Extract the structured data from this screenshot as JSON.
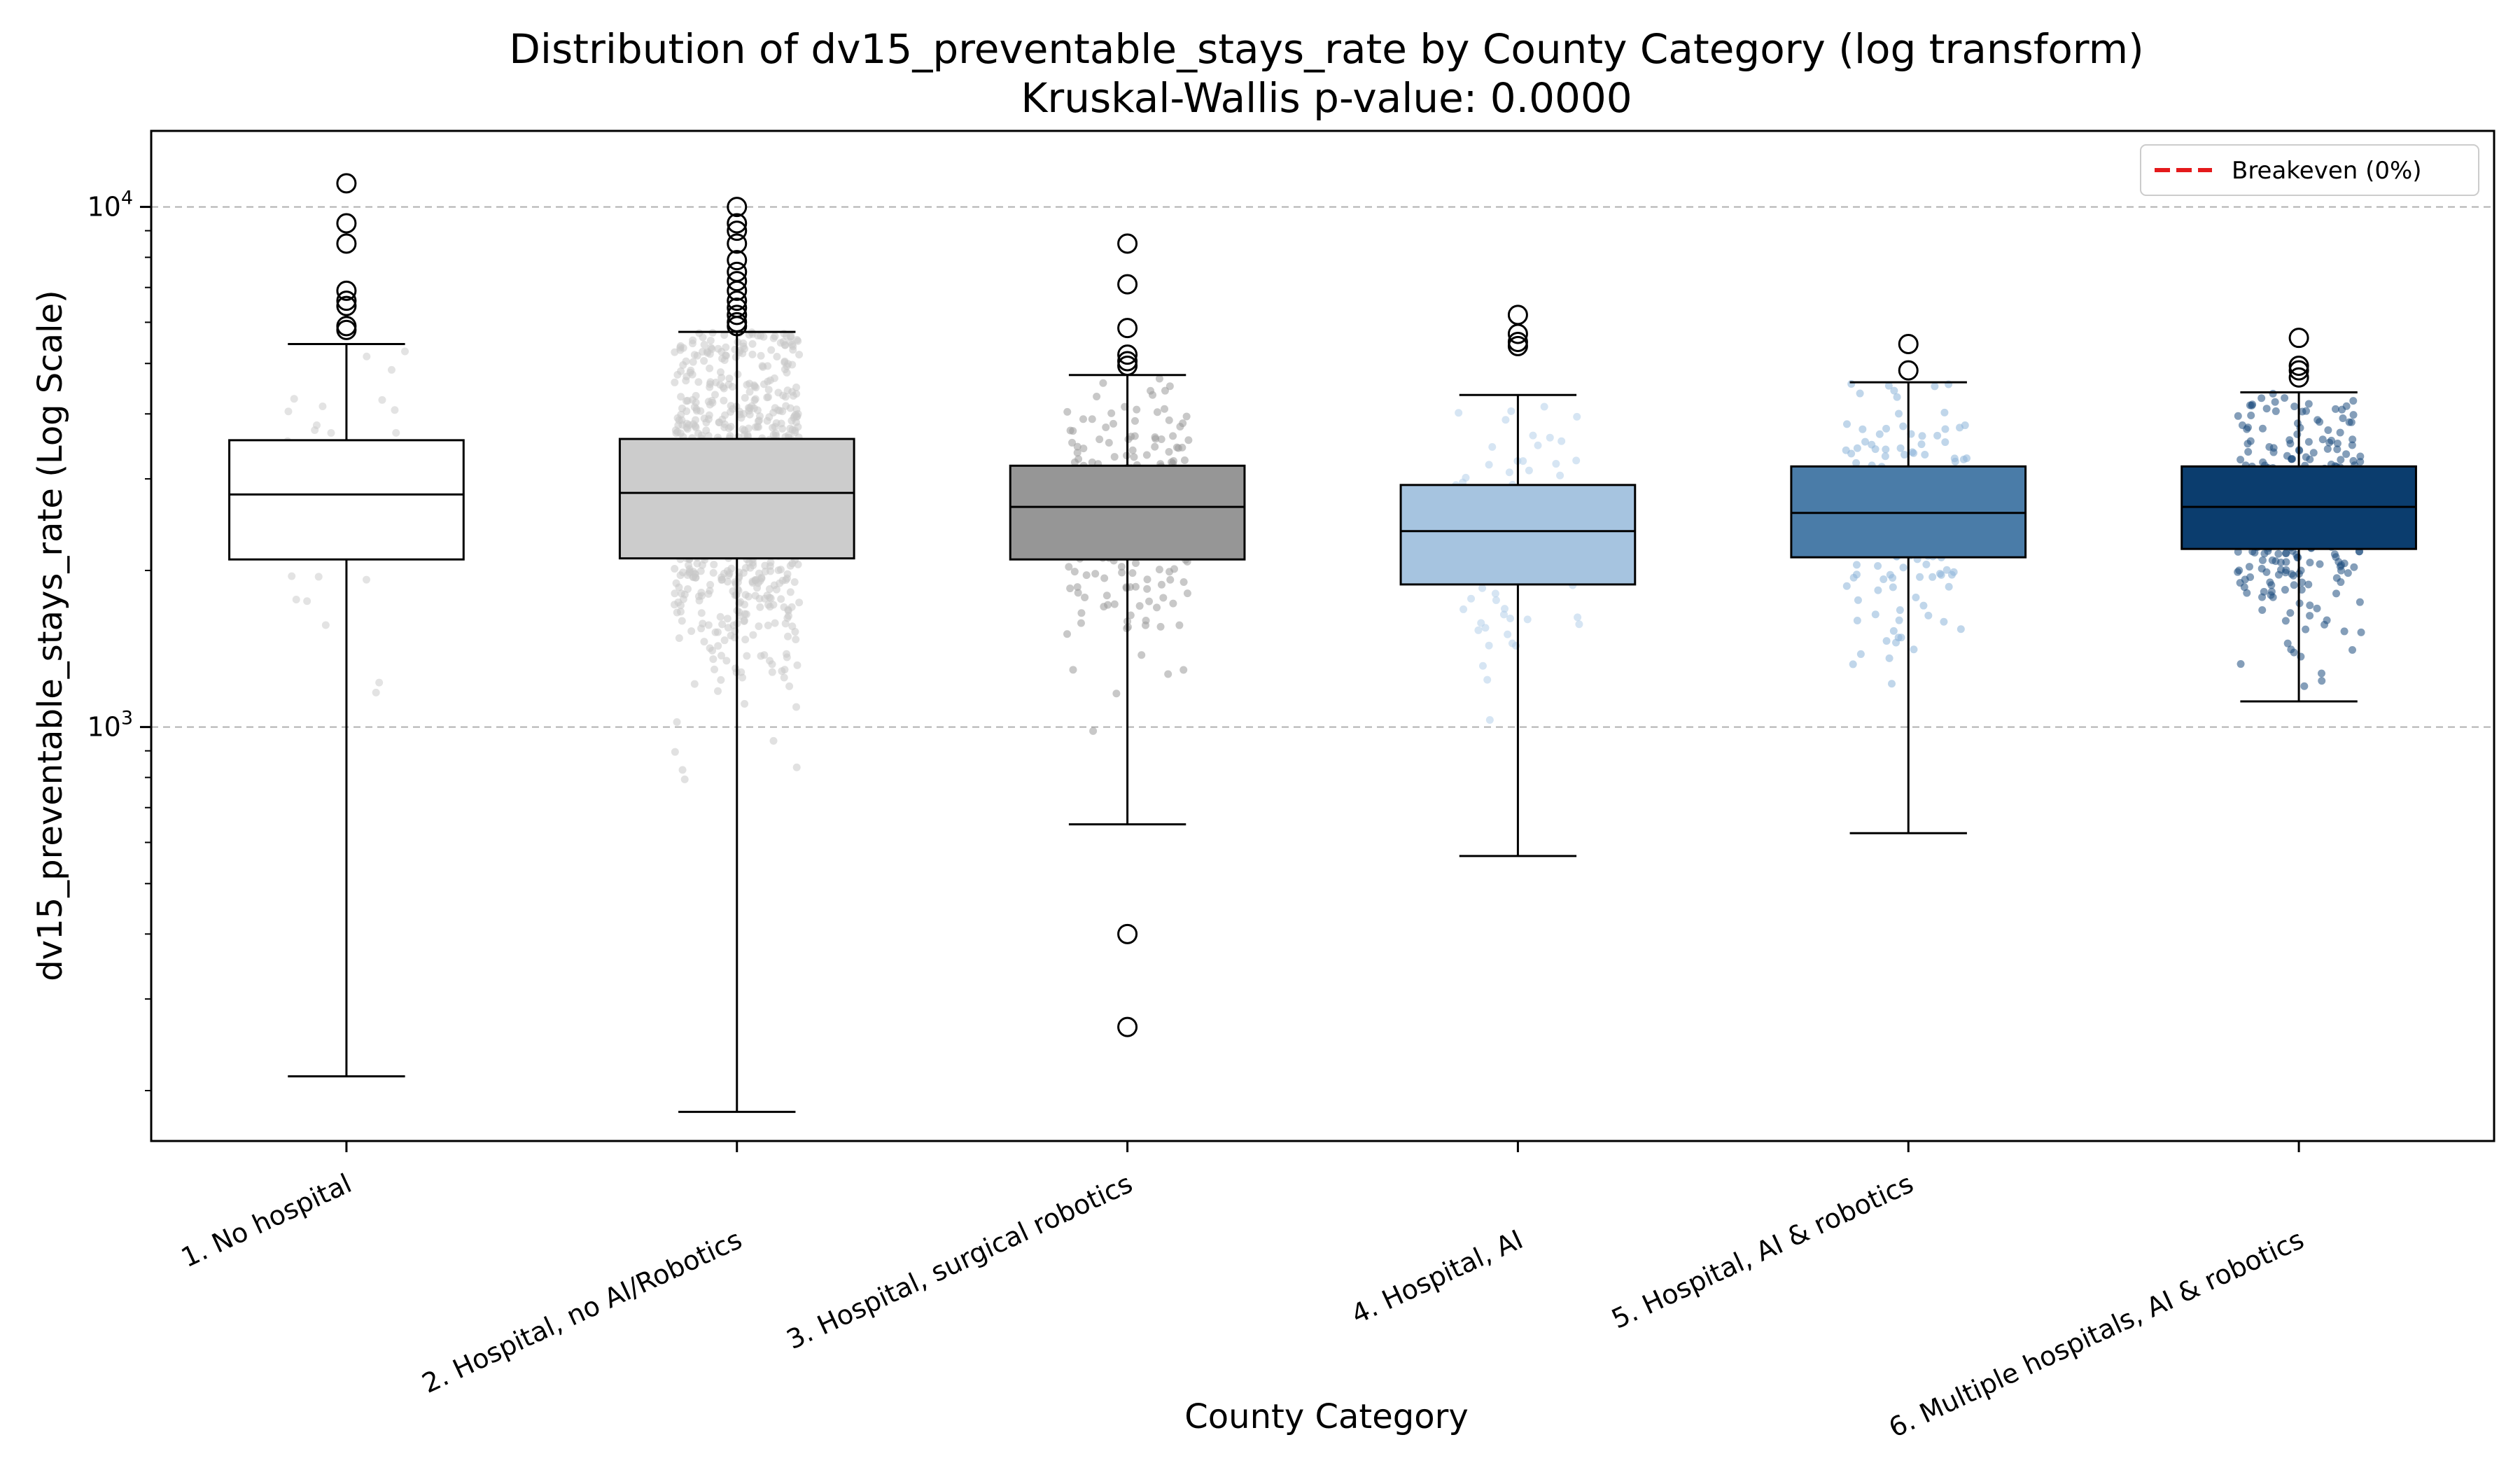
{
  "chart_data": {
    "type": "box",
    "title": "Distribution of dv15_preventable_stays_rate by County Category (log transform)",
    "subtitle": "Kruskal-Wallis p-value: 0.0000",
    "xlabel": "County Category",
    "ylabel": "dv15_preventable_stays_rate (Log Scale)",
    "yscale": "log",
    "ylim": [
      160,
      14000
    ],
    "yticks": [
      {
        "value": 1000,
        "base": "10",
        "exp": "3"
      },
      {
        "value": 10000,
        "base": "10",
        "exp": "4"
      }
    ],
    "grid": "y-major-dashed",
    "legend": {
      "position": "top-right",
      "entries": [
        {
          "label": "Breakeven (0%)",
          "color": "#e41a1c",
          "style": "dashed"
        }
      ]
    },
    "categories": [
      "1. No hospital",
      "2. Hospital, no AI/Robotics",
      "3. Hospital, surgical robotics",
      "4. Hospital, AI",
      "5. Hospital, AI & robotics",
      "6. Multiple hospitals, AI & robotics"
    ],
    "boxes": [
      {
        "category": "1. No hospital",
        "color": "#ffffff",
        "jitter_color": "#cccccc",
        "whisker_low": 213,
        "q1": 2100,
        "median": 2800,
        "q3": 3560,
        "whisker_high": 5450,
        "outliers": [
          11100,
          9300,
          8500,
          6900,
          6600,
          6450,
          5900,
          5800
        ],
        "n_points": 30
      },
      {
        "category": "2. Hospital, no AI/Robotics",
        "color": "#cccccc",
        "jitter_color": "#c8c8c8",
        "whisker_low": 182,
        "q1": 2110,
        "median": 2820,
        "q3": 3580,
        "whisker_high": 5750,
        "outliers": [
          10000,
          9300,
          9000,
          8500,
          7900,
          7500,
          7200,
          6900,
          6600,
          6400,
          6200,
          6000,
          5900
        ],
        "n_points": 900
      },
      {
        "category": "3. Hospital, surgical robotics",
        "color": "#969696",
        "jitter_color": "#9a9a9a",
        "whisker_low": 650,
        "q1": 2100,
        "median": 2650,
        "q3": 3180,
        "whisker_high": 4750,
        "outliers": [
          8500,
          7100,
          5850,
          5200,
          5050,
          4950,
          400,
          265
        ],
        "n_points": 260
      },
      {
        "category": "4. Hospital, AI",
        "color": "#a6c4e0",
        "jitter_color": "#b4d0ea",
        "whisker_low": 565,
        "q1": 1880,
        "median": 2380,
        "q3": 2920,
        "whisker_high": 4350,
        "outliers": [
          6200,
          5700,
          5500,
          5400
        ],
        "n_points": 90
      },
      {
        "category": "5. Hospital, AI & robotics",
        "color": "#4a7ca8",
        "jitter_color": "#8db4d8",
        "whisker_low": 625,
        "q1": 2120,
        "median": 2580,
        "q3": 3170,
        "whisker_high": 4600,
        "outliers": [
          5450,
          4850
        ],
        "n_points": 150
      },
      {
        "category": "6. Multiple hospitals, AI & robotics",
        "color": "#0b3d6e",
        "jitter_color": "#1f4f80",
        "whisker_low": 1120,
        "q1": 2200,
        "median": 2650,
        "q3": 3170,
        "whisker_high": 4400,
        "outliers": [
          5600,
          4950,
          4850,
          4700
        ],
        "n_points": 300
      }
    ]
  }
}
